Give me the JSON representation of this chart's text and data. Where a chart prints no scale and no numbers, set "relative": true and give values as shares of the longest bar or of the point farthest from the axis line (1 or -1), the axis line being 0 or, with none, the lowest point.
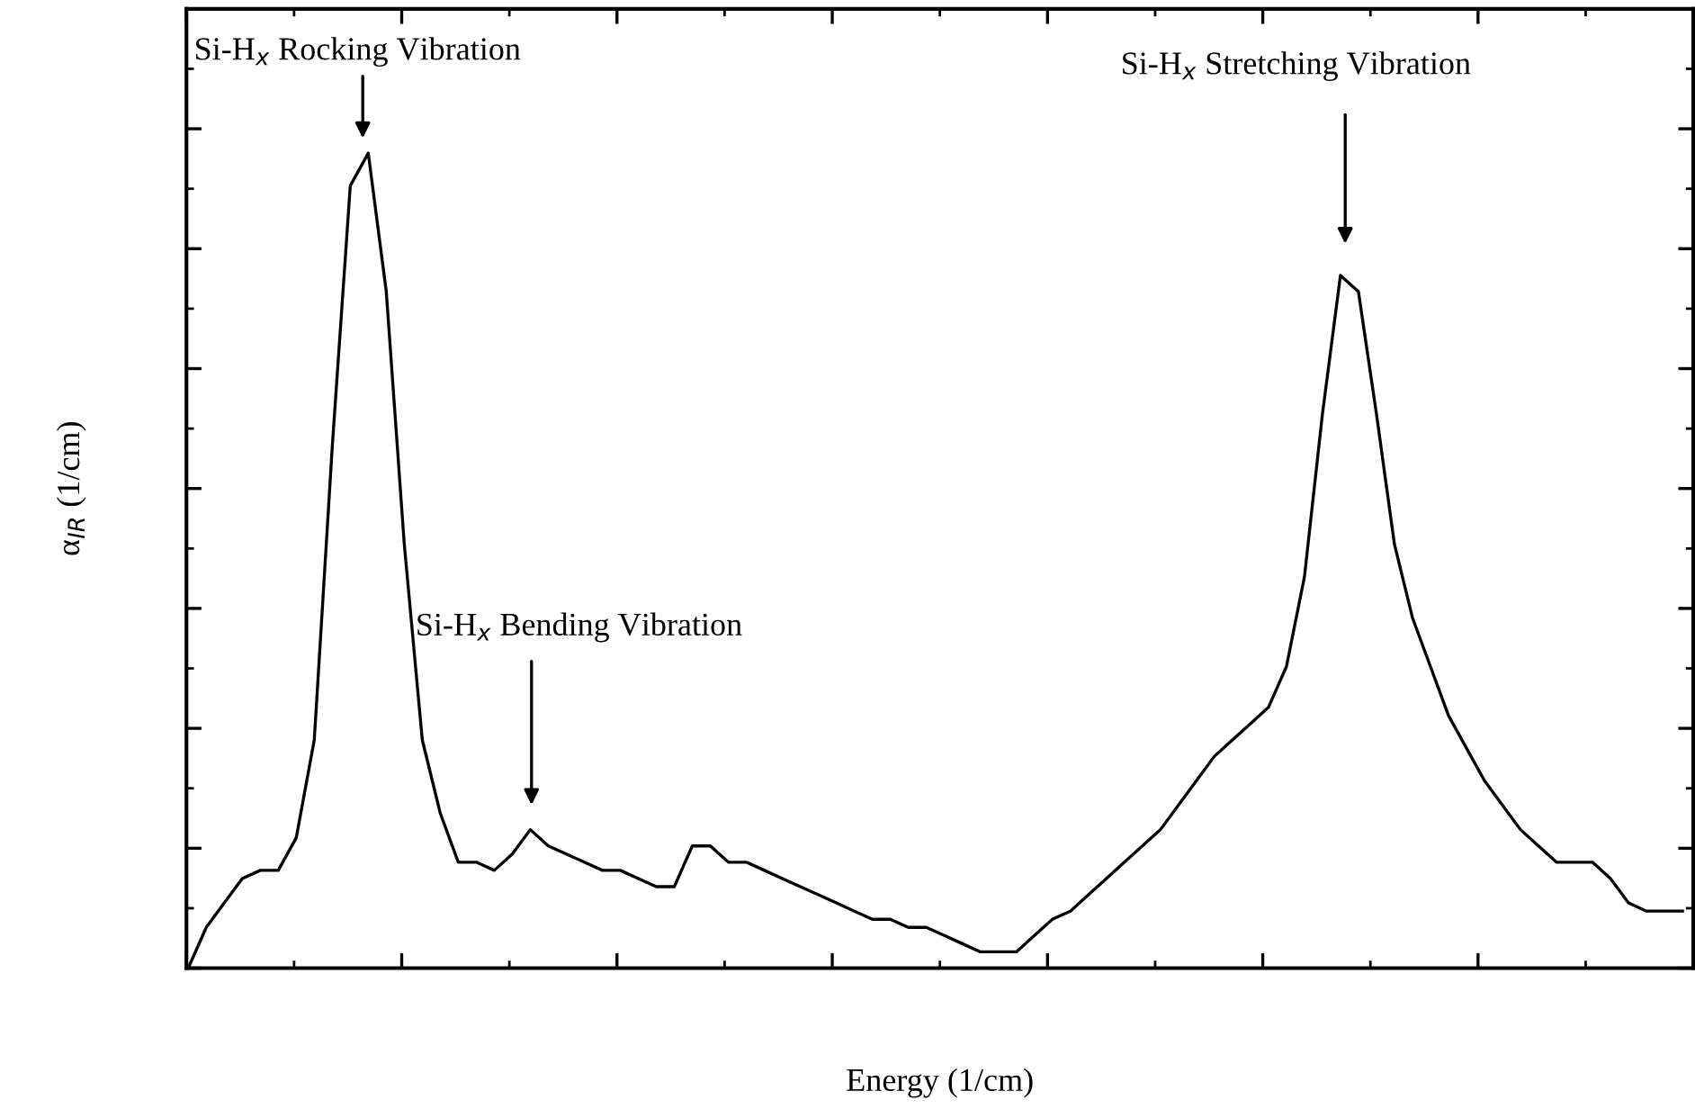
{
  "chart_data": {
    "type": "line",
    "relative": true,
    "tick_labels": false,
    "xlabel": "Energy (1/cm)",
    "ylabel": "α$_{IR}$ (1/cm)",
    "color": "#000000",
    "annotations": [
      "Si-H$_{x}$ Rocking Vibration",
      "Si-H$_{x}$ Bending Vibration",
      "Si-H$_{x}$ Stretching Vibration"
    ],
    "categories": [
      null,
      null,
      null,
      null,
      null,
      null,
      null,
      null,
      null,
      null,
      null,
      null,
      null,
      null,
      null,
      null,
      null,
      null,
      null,
      null,
      null,
      null,
      null,
      null,
      null,
      null,
      null,
      null,
      null,
      null,
      null,
      null,
      null,
      null,
      null,
      null,
      null,
      null,
      null,
      null,
      null,
      null,
      null,
      null,
      null,
      null,
      null,
      null,
      null,
      null,
      null,
      null,
      null,
      null,
      null,
      null,
      null,
      null,
      null,
      null,
      null,
      null,
      null,
      null,
      null,
      null,
      null,
      null,
      null,
      null,
      null,
      null,
      null,
      null,
      null,
      null,
      null,
      null,
      null,
      null,
      null,
      null,
      null,
      null
    ],
    "values": [
      0.0,
      0.05,
      0.08,
      0.11,
      0.12,
      0.12,
      0.16,
      0.28,
      0.64,
      0.96,
      1.0,
      0.83,
      0.52,
      0.28,
      0.19,
      0.13,
      0.13,
      0.12,
      0.14,
      0.17,
      0.15,
      0.14,
      0.13,
      0.12,
      0.12,
      0.11,
      0.1,
      0.1,
      0.15,
      0.15,
      0.13,
      0.13,
      0.12,
      0.11,
      0.1,
      0.09,
      0.08,
      0.07,
      0.06,
      0.06,
      0.05,
      0.05,
      0.04,
      0.03,
      0.02,
      0.02,
      0.02,
      0.04,
      0.06,
      0.07,
      0.09,
      0.11,
      0.13,
      0.15,
      0.17,
      0.2,
      0.23,
      0.26,
      0.28,
      0.3,
      0.32,
      0.37,
      0.48,
      0.68,
      0.85,
      0.83,
      0.68,
      0.52,
      0.43,
      0.37,
      0.31,
      0.27,
      0.23,
      0.2,
      0.17,
      0.15,
      0.13,
      0.13,
      0.13,
      0.11,
      0.08,
      0.07,
      0.07,
      0.07
    ]
  }
}
